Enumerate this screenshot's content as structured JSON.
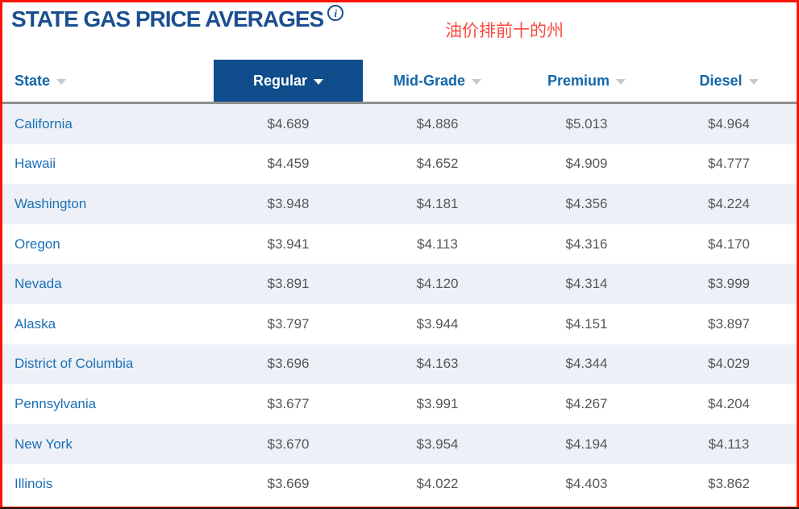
{
  "page": {
    "title": "STATE GAS PRICE AVERAGES",
    "info_icon_glyph": "i",
    "annotation": "油价排前十的州"
  },
  "table": {
    "columns": [
      {
        "label": "State",
        "selected": false
      },
      {
        "label": "Regular",
        "selected": true
      },
      {
        "label": "Mid-Grade",
        "selected": false
      },
      {
        "label": "Premium",
        "selected": false
      },
      {
        "label": "Diesel",
        "selected": false
      }
    ],
    "rows": [
      {
        "state": "California",
        "regular": "$4.689",
        "mid_grade": "$4.886",
        "premium": "$5.013",
        "diesel": "$4.964"
      },
      {
        "state": "Hawaii",
        "regular": "$4.459",
        "mid_grade": "$4.652",
        "premium": "$4.909",
        "diesel": "$4.777"
      },
      {
        "state": "Washington",
        "regular": "$3.948",
        "mid_grade": "$4.181",
        "premium": "$4.356",
        "diesel": "$4.224"
      },
      {
        "state": "Oregon",
        "regular": "$3.941",
        "mid_grade": "$4.113",
        "premium": "$4.316",
        "diesel": "$4.170"
      },
      {
        "state": "Nevada",
        "regular": "$3.891",
        "mid_grade": "$4.120",
        "premium": "$4.314",
        "diesel": "$3.999"
      },
      {
        "state": "Alaska",
        "regular": "$3.797",
        "mid_grade": "$3.944",
        "premium": "$4.151",
        "diesel": "$3.897"
      },
      {
        "state": "District of Columbia",
        "regular": "$3.696",
        "mid_grade": "$4.163",
        "premium": "$4.344",
        "diesel": "$4.029"
      },
      {
        "state": "Pennsylvania",
        "regular": "$3.677",
        "mid_grade": "$3.991",
        "premium": "$4.267",
        "diesel": "$4.204"
      },
      {
        "state": "New York",
        "regular": "$3.670",
        "mid_grade": "$3.954",
        "premium": "$4.194",
        "diesel": "$4.113"
      },
      {
        "state": "Illinois",
        "regular": "$3.669",
        "mid_grade": "$4.022",
        "premium": "$4.403",
        "diesel": "$3.862"
      }
    ]
  },
  "colors": {
    "brand_blue_dark": "#1b4f8f",
    "header_selected_bg": "#0f4d8c",
    "header_label_blue": "#1266a9",
    "state_link_blue": "#1b6fb5",
    "value_gray": "#54575b",
    "alt_row_bg": "#edf1f7",
    "chevron_gray": "#c4c9ce",
    "annotation_red": "#f84a3e",
    "border_red": "#f81505"
  }
}
